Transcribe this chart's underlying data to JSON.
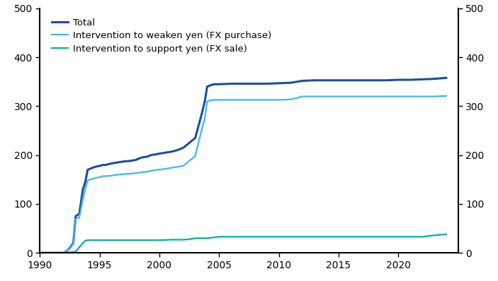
{
  "series": {
    "total": {
      "label": "Total",
      "color": "#1a4fa0",
      "linewidth": 2.2,
      "data": [
        [
          1990,
          0
        ],
        [
          1991,
          0
        ],
        [
          1991.5,
          0
        ],
        [
          1992,
          0
        ],
        [
          1992.3,
          5
        ],
        [
          1992.5,
          10
        ],
        [
          1992.8,
          20
        ],
        [
          1993,
          75
        ],
        [
          1993.3,
          80
        ],
        [
          1993.6,
          130
        ],
        [
          1993.8,
          145
        ],
        [
          1994,
          170
        ],
        [
          1994.2,
          172
        ],
        [
          1994.5,
          175
        ],
        [
          1994.8,
          177
        ],
        [
          1995,
          178
        ],
        [
          1995.3,
          180
        ],
        [
          1995.5,
          180
        ],
        [
          1996,
          183
        ],
        [
          1996.5,
          185
        ],
        [
          1997,
          187
        ],
        [
          1997.5,
          188
        ],
        [
          1998,
          190
        ],
        [
          1998.5,
          195
        ],
        [
          1999,
          197
        ],
        [
          1999.3,
          200
        ],
        [
          1999.8,
          202
        ],
        [
          2000,
          203
        ],
        [
          2000.5,
          205
        ],
        [
          2001,
          207
        ],
        [
          2001.5,
          210
        ],
        [
          2002,
          215
        ],
        [
          2002.5,
          225
        ],
        [
          2003,
          235
        ],
        [
          2003.5,
          280
        ],
        [
          2003.8,
          310
        ],
        [
          2004,
          340
        ],
        [
          2004.3,
          343
        ],
        [
          2004.6,
          345
        ],
        [
          2005,
          345
        ],
        [
          2006,
          346
        ],
        [
          2007,
          346
        ],
        [
          2008,
          346
        ],
        [
          2009,
          346
        ],
        [
          2010,
          347
        ],
        [
          2011,
          348
        ],
        [
          2011.5,
          350
        ],
        [
          2012,
          352
        ],
        [
          2013,
          353
        ],
        [
          2014,
          353
        ],
        [
          2015,
          353
        ],
        [
          2016,
          353
        ],
        [
          2017,
          353
        ],
        [
          2018,
          353
        ],
        [
          2019,
          353
        ],
        [
          2020,
          354
        ],
        [
          2021,
          354
        ],
        [
          2022,
          355
        ],
        [
          2023,
          356
        ],
        [
          2024,
          358
        ]
      ]
    },
    "weaken": {
      "label": "Intervention to weaken yen (FX purchase)",
      "color": "#41b6e6",
      "linewidth": 1.6,
      "data": [
        [
          1990,
          0
        ],
        [
          1991,
          0
        ],
        [
          1991.5,
          0
        ],
        [
          1992,
          0
        ],
        [
          1992.3,
          5
        ],
        [
          1992.5,
          9
        ],
        [
          1992.8,
          18
        ],
        [
          1993,
          70
        ],
        [
          1993.3,
          72
        ],
        [
          1993.6,
          110
        ],
        [
          1993.8,
          130
        ],
        [
          1994,
          148
        ],
        [
          1994.2,
          150
        ],
        [
          1994.5,
          152
        ],
        [
          1994.8,
          154
        ],
        [
          1995,
          155
        ],
        [
          1995.3,
          157
        ],
        [
          1995.5,
          157
        ],
        [
          1996,
          158
        ],
        [
          1996.5,
          160
        ],
        [
          1997,
          161
        ],
        [
          1997.5,
          162
        ],
        [
          1998,
          163
        ],
        [
          1998.5,
          165
        ],
        [
          1999,
          166
        ],
        [
          1999.3,
          168
        ],
        [
          1999.8,
          170
        ],
        [
          2000,
          170
        ],
        [
          2000.5,
          172
        ],
        [
          2001,
          174
        ],
        [
          2001.5,
          176
        ],
        [
          2002,
          178
        ],
        [
          2002.5,
          188
        ],
        [
          2003,
          198
        ],
        [
          2003.5,
          248
        ],
        [
          2003.8,
          275
        ],
        [
          2004,
          310
        ],
        [
          2004.3,
          312
        ],
        [
          2004.6,
          313
        ],
        [
          2005,
          313
        ],
        [
          2006,
          313
        ],
        [
          2007,
          313
        ],
        [
          2008,
          313
        ],
        [
          2009,
          313
        ],
        [
          2010,
          313
        ],
        [
          2011,
          314
        ],
        [
          2011.5,
          317
        ],
        [
          2012,
          320
        ],
        [
          2013,
          320
        ],
        [
          2014,
          320
        ],
        [
          2015,
          320
        ],
        [
          2016,
          320
        ],
        [
          2017,
          320
        ],
        [
          2018,
          320
        ],
        [
          2019,
          320
        ],
        [
          2020,
          320
        ],
        [
          2021,
          320
        ],
        [
          2022,
          320
        ],
        [
          2023,
          320
        ],
        [
          2024,
          321
        ]
      ]
    },
    "support": {
      "label": "Intervention to support yen (FX sale)",
      "color": "#00b0a0",
      "linewidth": 1.6,
      "data": [
        [
          1990,
          0
        ],
        [
          1991,
          0
        ],
        [
          1991.5,
          0
        ],
        [
          1992,
          0
        ],
        [
          1992.3,
          0.5
        ],
        [
          1992.8,
          2
        ],
        [
          1993,
          3
        ],
        [
          1993.6,
          20
        ],
        [
          1993.8,
          25
        ],
        [
          1994,
          26
        ],
        [
          1994.2,
          26
        ],
        [
          1995,
          26
        ],
        [
          1996,
          26
        ],
        [
          1997,
          26
        ],
        [
          1998,
          26
        ],
        [
          1999,
          26
        ],
        [
          2000,
          26
        ],
        [
          2001,
          27
        ],
        [
          2001.5,
          27
        ],
        [
          2002,
          27
        ],
        [
          2002.5,
          28
        ],
        [
          2003,
          30
        ],
        [
          2004,
          30
        ],
        [
          2005,
          33
        ],
        [
          2005.5,
          33
        ],
        [
          2006,
          33
        ],
        [
          2007,
          33
        ],
        [
          2008,
          33
        ],
        [
          2009,
          33
        ],
        [
          2010,
          33
        ],
        [
          2011,
          33
        ],
        [
          2012,
          33
        ],
        [
          2013,
          33
        ],
        [
          2014,
          33
        ],
        [
          2015,
          33
        ],
        [
          2016,
          33
        ],
        [
          2017,
          33
        ],
        [
          2018,
          33
        ],
        [
          2019,
          33
        ],
        [
          2020,
          33
        ],
        [
          2021,
          33
        ],
        [
          2022,
          33
        ],
        [
          2023,
          36
        ],
        [
          2024,
          38
        ]
      ]
    }
  },
  "xlim": [
    1990,
    2025
  ],
  "ylim": [
    0,
    500
  ],
  "xticks": [
    1990,
    1995,
    2000,
    2005,
    2010,
    2015,
    2020
  ],
  "yticks": [
    0,
    100,
    200,
    300,
    400,
    500
  ],
  "background_color": "#ffffff",
  "tick_fontsize": 10,
  "legend_fontsize": 9.5
}
